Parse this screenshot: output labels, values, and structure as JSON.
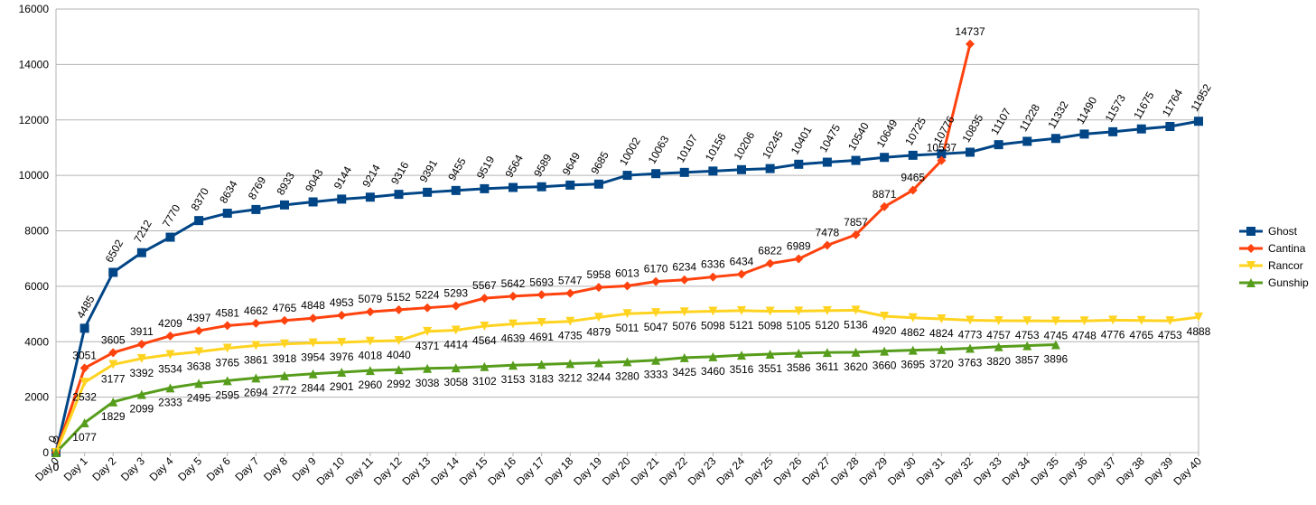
{
  "chart_data": {
    "type": "line",
    "categories": [
      "Day 0",
      "Day 1",
      "Day 2",
      "Day 3",
      "Day 4",
      "Day 5",
      "Day 6",
      "Day 7",
      "Day 8",
      "Day 9",
      "Day 10",
      "Day 11",
      "Day 12",
      "Day 13",
      "Day 14",
      "Day 15",
      "Day 16",
      "Day 17",
      "Day 18",
      "Day 19",
      "Day 20",
      "Day 21",
      "Day 22",
      "Day 23",
      "Day 24",
      "Day 25",
      "Day 26",
      "Day 27",
      "Day 28",
      "Day 29",
      "Day 30",
      "Day 31",
      "Day 32",
      "Day 33",
      "Day 34",
      "Day 35",
      "Day 36",
      "Day 37",
      "Day 38",
      "Day 39",
      "Day 40"
    ],
    "series": [
      {
        "name": "Ghost",
        "color": "#004586",
        "marker": "square",
        "values": [
          0,
          4485,
          6502,
          7212,
          7770,
          8370,
          8634,
          8769,
          8933,
          9043,
          9144,
          9214,
          9316,
          9391,
          9455,
          9519,
          9564,
          9589,
          9649,
          9685,
          10002,
          10063,
          10107,
          10156,
          10206,
          10245,
          10401,
          10475,
          10540,
          10649,
          10725,
          10776,
          10835,
          11107,
          11228,
          11332,
          11490,
          11573,
          11675,
          11764,
          11952
        ]
      },
      {
        "name": "Cantina",
        "color": "#ff420e",
        "marker": "diamond",
        "values": [
          0,
          3051,
          3605,
          3911,
          4209,
          4397,
          4581,
          4662,
          4765,
          4848,
          4953,
          5079,
          5152,
          5224,
          5293,
          5567,
          5642,
          5693,
          5747,
          5958,
          6013,
          6170,
          6234,
          6336,
          6434,
          6822,
          6989,
          7478,
          7857,
          8871,
          9465,
          10537,
          14737,
          null,
          null,
          null,
          null,
          null,
          null,
          null,
          null
        ]
      },
      {
        "name": "Rancor",
        "color": "#ffd320",
        "marker": "triangle-down",
        "values": [
          0,
          2532,
          3177,
          3392,
          3534,
          3638,
          3765,
          3861,
          3918,
          3954,
          3976,
          4018,
          4040,
          4371,
          4414,
          4564,
          4639,
          4691,
          4735,
          4879,
          5011,
          5047,
          5076,
          5098,
          5121,
          5098,
          5105,
          5120,
          5136,
          4920,
          4862,
          4824,
          4773,
          4757,
          4753,
          4745,
          4748,
          4776,
          4765,
          4753,
          4888
        ]
      },
      {
        "name": "Gunship",
        "color": "#579d1c",
        "marker": "triangle-up",
        "values": [
          0,
          1077,
          1829,
          2099,
          2333,
          2495,
          2595,
          2694,
          2772,
          2844,
          2901,
          2960,
          2992,
          3038,
          3058,
          3102,
          3153,
          3183,
          3212,
          3244,
          3280,
          3333,
          3425,
          3460,
          3516,
          3551,
          3586,
          3611,
          3620,
          3660,
          3695,
          3720,
          3763,
          3820,
          3857,
          3896,
          null,
          null,
          null,
          null,
          null
        ]
      }
    ],
    "ylim": [
      0,
      16000
    ],
    "yticks": [
      0,
      2000,
      4000,
      6000,
      8000,
      10000,
      12000,
      14000,
      16000
    ],
    "grid": true,
    "legend": "right"
  }
}
